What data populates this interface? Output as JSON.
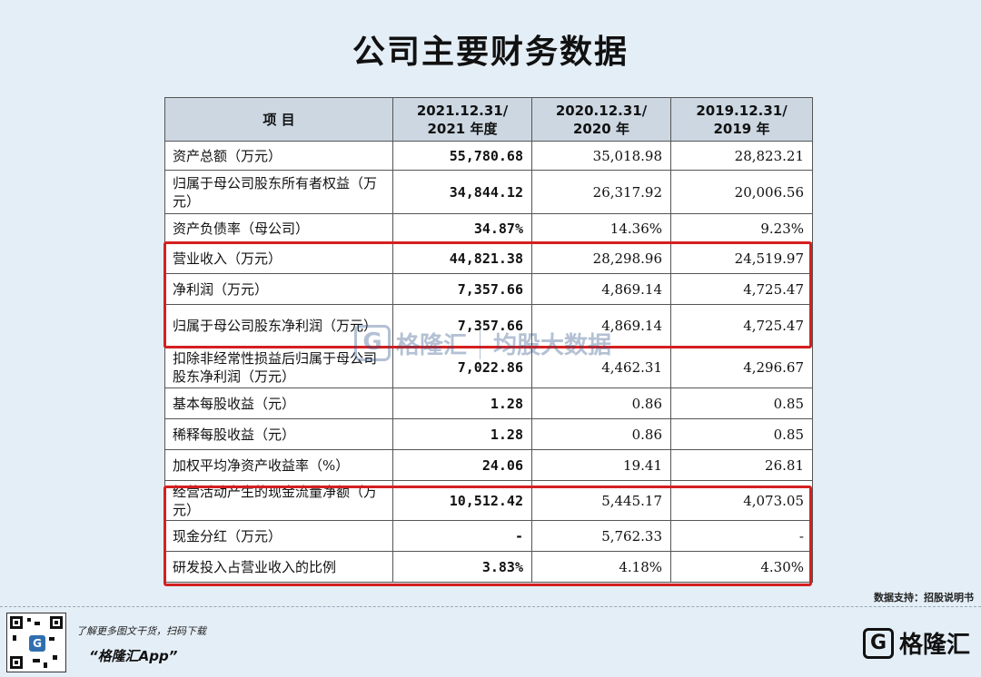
{
  "title": "公司主要财务数据",
  "table": {
    "headers": [
      {
        "line1": "项  目",
        "line2": ""
      },
      {
        "line1": "2021.12.31/",
        "line2": "2021 年度"
      },
      {
        "line1": "2020.12.31/",
        "line2": "2020 年"
      },
      {
        "line1": "2019.12.31/",
        "line2": "2019 年"
      }
    ],
    "rows": [
      {
        "label": "资产总额（万元）",
        "v2021": "55,780.68",
        "v2020": "35,018.98",
        "v2019": "28,823.21"
      },
      {
        "label": "归属于母公司股东所有者权益（万元）",
        "v2021": "34,844.12",
        "v2020": "26,317.92",
        "v2019": "20,006.56"
      },
      {
        "label": "资产负债率（母公司）",
        "v2021": "34.87%",
        "v2020": "14.36%",
        "v2019": "9.23%"
      },
      {
        "label": "营业收入（万元）",
        "v2021": "44,821.38",
        "v2020": "28,298.96",
        "v2019": "24,519.97"
      },
      {
        "label": "净利润（万元）",
        "v2021": "7,357.66",
        "v2020": "4,869.14",
        "v2019": "4,725.47"
      },
      {
        "label": "归属于母公司股东净利润（万元）",
        "v2021": "7,357.66",
        "v2020": "4,869.14",
        "v2019": "4,725.47"
      },
      {
        "label": "扣除非经常性损益后归属于母公司股东净利润（万元）",
        "v2021": "7,022.86",
        "v2020": "4,462.31",
        "v2019": "4,296.67"
      },
      {
        "label": "基本每股收益（元）",
        "v2021": "1.28",
        "v2020": "0.86",
        "v2019": "0.85"
      },
      {
        "label": "稀释每股收益（元）",
        "v2021": "1.28",
        "v2020": "0.86",
        "v2019": "0.85"
      },
      {
        "label": "加权平均净资产收益率（%）",
        "v2021": "24.06",
        "v2020": "19.41",
        "v2019": "26.81"
      },
      {
        "label": "经营活动产生的现金流量净额（万元）",
        "v2021": "10,512.42",
        "v2020": "5,445.17",
        "v2019": "4,073.05"
      },
      {
        "label": "现金分红（万元）",
        "v2021": "-",
        "v2020": "5,762.33",
        "v2019": "-"
      },
      {
        "label": "研发投入占营业收入的比例",
        "v2021": "3.83%",
        "v2020": "4.18%",
        "v2019": "4.30%"
      }
    ]
  },
  "watermark": {
    "brand": "格隆汇",
    "mark": "G",
    "partner": "均股大数据"
  },
  "source": "数据支持：招股说明书",
  "footer": {
    "promo_line1": "了解更多图文干货，扫码下载",
    "promo_line2": "“格隆汇App”",
    "brand_mark": "G",
    "brand_name": "格隆汇"
  },
  "colors": {
    "background": "#e4eef7",
    "header_fill": "#ccd7e2",
    "highlight": "#d42020"
  }
}
